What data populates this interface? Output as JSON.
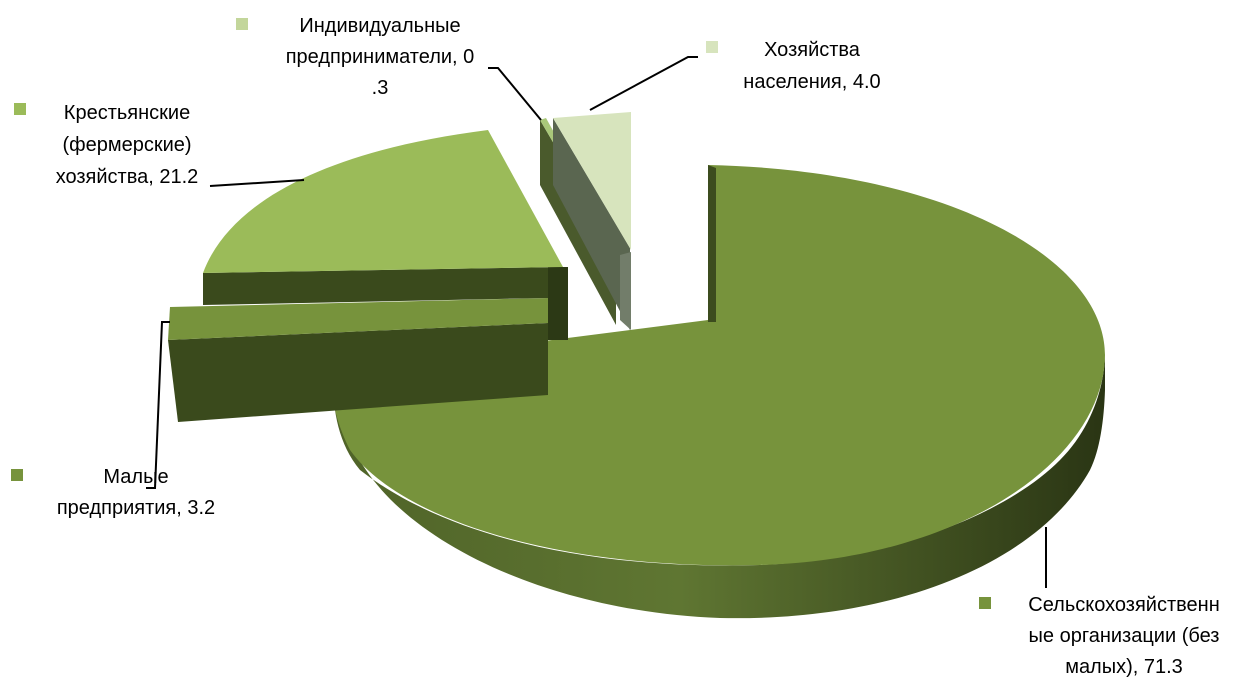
{
  "chart_data": {
    "type": "pie",
    "style": "3d-exploded",
    "title": "",
    "legend": "none",
    "slices": [
      {
        "name": "Сельскохозяйственные организации (без малых)",
        "value": 71.3,
        "color": "#77933c",
        "label_lines": [
          "Сельскохозяйственн",
          "ые организации (без",
          "малых), 71.3"
        ]
      },
      {
        "name": "Малые предприятия",
        "value": 3.2,
        "color": "#77933c",
        "label_lines": [
          "Малые",
          "предприятия, 3.2"
        ]
      },
      {
        "name": "Крестьянские (фермерские) хозяйства",
        "value": 21.2,
        "color": "#9bbb59",
        "label_lines": [
          "Крестьянские",
          "(фермерские)",
          "хозяйства, 21.2"
        ]
      },
      {
        "name": "Индивидуальные предприниматели",
        "value": 0.3,
        "color": "#a9c87a",
        "label_lines": [
          "Индивидуальные",
          "предприниматели, 0",
          ".3"
        ]
      },
      {
        "name": "Хозяйства населения",
        "value": 4.0,
        "color": "#d7e4bd",
        "label_lines": [
          "Хозяйства",
          "населения, 4.0"
        ]
      }
    ]
  }
}
